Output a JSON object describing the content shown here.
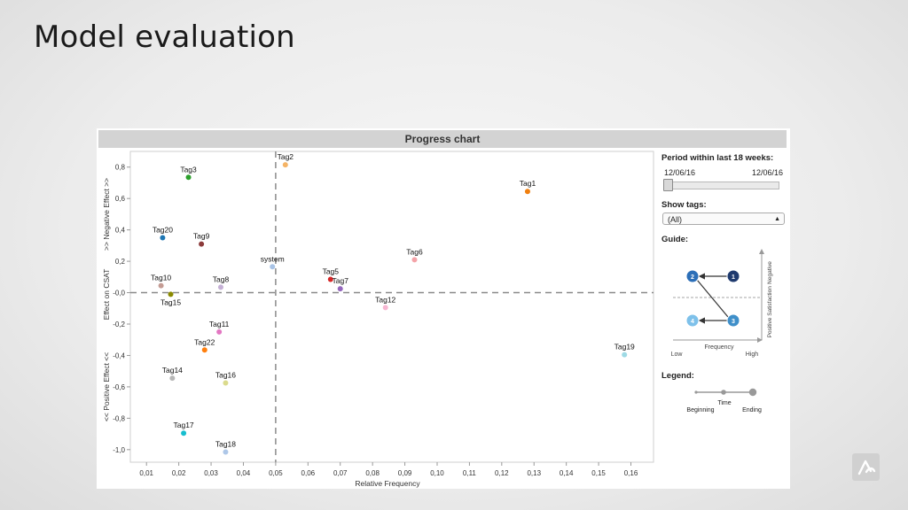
{
  "slide": {
    "title": "Model evaluation"
  },
  "panel": {
    "header": "Progress chart",
    "period_label": "Period within last 18 weeks:",
    "period_start": "12/06/16",
    "period_end": "12/06/16",
    "period_position": 0.0,
    "tags_label": "Show tags:",
    "tags_value": "(All)",
    "guide_label": "Guide:",
    "legend_label": "Legend:"
  },
  "guide": {
    "ylabel_top": "Negative",
    "ylabel_mid": "Satisfaction",
    "ylabel_bottom": "Positive",
    "xlabel_mid": "Frequency",
    "xlabel_low": "Low",
    "xlabel_high": "High",
    "nodes": [
      "1",
      "2",
      "3",
      "4"
    ],
    "colors": {
      "n1": "#1f3a6e",
      "n2": "#2c6fb8",
      "n3": "#3f8fc9",
      "n4": "#7ec1ea"
    }
  },
  "legend": {
    "time_label": "Time",
    "beginning_label": "Beginning",
    "ending_label": "Ending"
  },
  "chart_data": {
    "type": "scatter",
    "xlabel": "Relative Frequency",
    "ylabel": "Effect on CSAT",
    "ylabel_top": ">> Negative Effect >>",
    "ylabel_bottom": "<< Positive Effect <<",
    "xlim": [
      0.005,
      0.167
    ],
    "ylim": [
      -1.08,
      0.9
    ],
    "x_ticks": [
      0.01,
      0.02,
      0.03,
      0.04,
      0.05,
      0.06,
      0.07,
      0.08,
      0.09,
      0.1,
      0.11,
      0.12,
      0.13,
      0.14,
      0.15,
      0.16
    ],
    "x_tick_labels": [
      "0,01",
      "0,02",
      "0,03",
      "0,04",
      "0,05",
      "0,06",
      "0,07",
      "0,08",
      "0,09",
      "0,10",
      "0,11",
      "0,12",
      "0,13",
      "0,14",
      "0,15",
      "0,16"
    ],
    "y_ticks": [
      0.8,
      0.6,
      0.4,
      0.2,
      0.0,
      -0.2,
      -0.4,
      -0.6,
      -0.8,
      -1.0
    ],
    "y_tick_labels": [
      "0,8",
      "0,6",
      "0,4",
      "0,2",
      "-0,0",
      "-0,2",
      "-0,4",
      "-0,6",
      "-0,8",
      "-1,0"
    ],
    "ref_x": 0.05,
    "ref_y": 0.0,
    "grid": false,
    "points": [
      {
        "label": "Tag1",
        "x": 0.128,
        "y": 0.645,
        "color": "#f07f0e",
        "label_pos": "above"
      },
      {
        "label": "Tag2",
        "x": 0.053,
        "y": 0.815,
        "color": "#f5b466",
        "label_pos": "above"
      },
      {
        "label": "Tag3",
        "x": 0.023,
        "y": 0.735,
        "color": "#2ca02c",
        "label_pos": "above"
      },
      {
        "label": "Tag20",
        "x": 0.015,
        "y": 0.35,
        "color": "#1f77b4",
        "label_pos": "above"
      },
      {
        "label": "Tag9",
        "x": 0.027,
        "y": 0.31,
        "color": "#8c3b3b",
        "label_pos": "above"
      },
      {
        "label": "system",
        "x": 0.049,
        "y": 0.165,
        "color": "#a8c3e6",
        "label_pos": "above"
      },
      {
        "label": "Tag6",
        "x": 0.093,
        "y": 0.21,
        "color": "#f4a3a8",
        "label_pos": "above"
      },
      {
        "label": "Tag5",
        "x": 0.067,
        "y": 0.085,
        "color": "#d62728",
        "label_pos": "above"
      },
      {
        "label": "Tag7",
        "x": 0.07,
        "y": 0.025,
        "color": "#9467bd",
        "label_pos": "above"
      },
      {
        "label": "Tag10",
        "x": 0.0145,
        "y": 0.045,
        "color": "#c49c94",
        "label_pos": "above"
      },
      {
        "label": "Tag8",
        "x": 0.033,
        "y": 0.035,
        "color": "#c5b0d5",
        "label_pos": "above"
      },
      {
        "label": "Tag15",
        "x": 0.0175,
        "y": -0.01,
        "color": "#8a8a00",
        "label_pos": "below"
      },
      {
        "label": "Tag12",
        "x": 0.084,
        "y": -0.095,
        "color": "#f7b6d2",
        "label_pos": "above"
      },
      {
        "label": "Tag11",
        "x": 0.0325,
        "y": -0.25,
        "color": "#e377c2",
        "label_pos": "above"
      },
      {
        "label": "Tag22",
        "x": 0.028,
        "y": -0.365,
        "color": "#ff7f0e",
        "label_pos": "above"
      },
      {
        "label": "Tag19",
        "x": 0.158,
        "y": -0.395,
        "color": "#9edae5",
        "label_pos": "above"
      },
      {
        "label": "Tag14",
        "x": 0.018,
        "y": -0.545,
        "color": "#b8b8b8",
        "label_pos": "above"
      },
      {
        "label": "Tag16",
        "x": 0.0345,
        "y": -0.575,
        "color": "#dbdb8d",
        "label_pos": "above"
      },
      {
        "label": "Tag17",
        "x": 0.0215,
        "y": -0.895,
        "color": "#17becf",
        "label_pos": "above"
      },
      {
        "label": "Tag18",
        "x": 0.0345,
        "y": -1.015,
        "color": "#aec7e8",
        "label_pos": "above"
      }
    ]
  }
}
